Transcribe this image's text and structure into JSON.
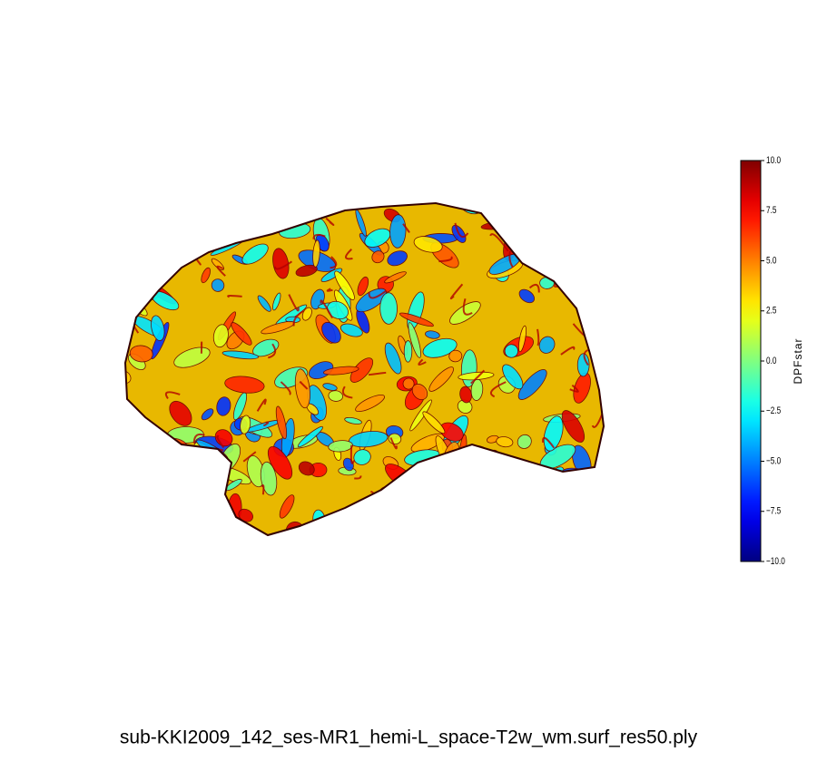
{
  "chart_data": {
    "type": "surface",
    "title": "sub-KKI2009_142_ses-MR1_hemi-L_space-T2w_wm.surf_res50.ply",
    "colorbar_label": "DPFstar",
    "colormap": "jet",
    "clim": [
      -10,
      10
    ],
    "cticks": [
      {
        "value": -10,
        "label": "−10.0"
      },
      {
        "value": -7.5,
        "label": "−7.5"
      },
      {
        "value": -5,
        "label": "−5.0"
      },
      {
        "value": -2.5,
        "label": "−2.5"
      },
      {
        "value": 0,
        "label": "0.0"
      },
      {
        "value": 2.5,
        "label": "2.5"
      },
      {
        "value": 5,
        "label": "5.0"
      },
      {
        "value": 7.5,
        "label": "7.5"
      },
      {
        "value": 10,
        "label": "10.0"
      }
    ]
  }
}
